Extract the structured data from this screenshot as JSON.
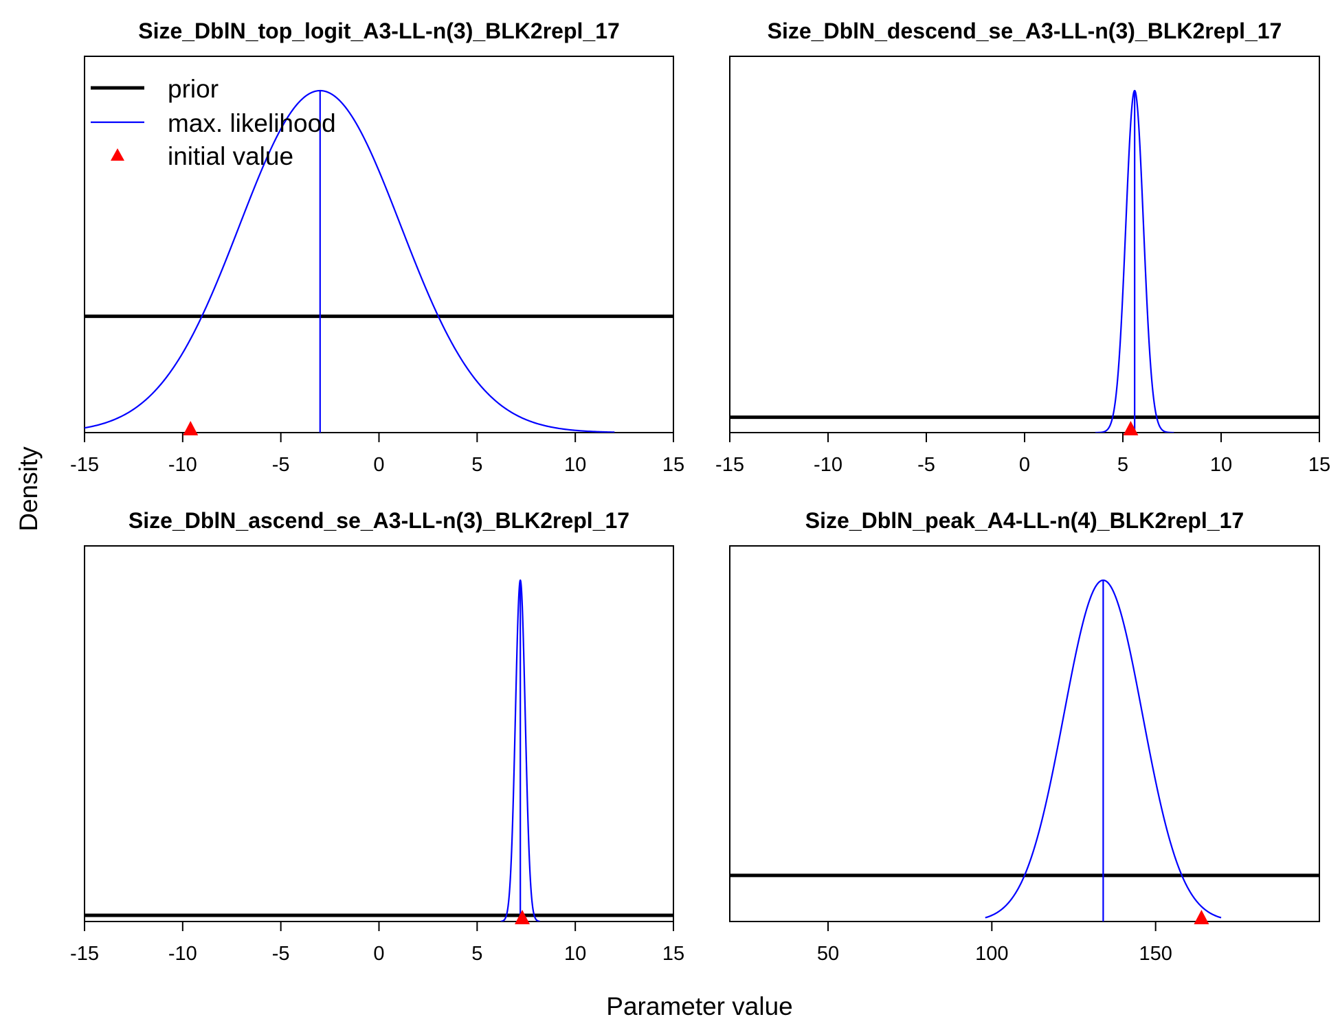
{
  "figure": {
    "xlabel": "Parameter value",
    "ylabel": "Density"
  },
  "legend": {
    "placement": "top-left of first panel",
    "entries": [
      {
        "label": "prior",
        "style": "line",
        "color": "#000000"
      },
      {
        "label": "max. likelihood",
        "style": "line",
        "color": "#0000ff"
      },
      {
        "label": "initial value",
        "style": "triangle",
        "color": "#ff0000"
      }
    ]
  },
  "colors": {
    "prior": "#000000",
    "max_likelihood": "#0000ff",
    "initial_value": "#ff0000"
  },
  "chart_data": [
    {
      "type": "line",
      "title": "Size_DblN_top_logit_A3-LL-n(3)_BLK2repl_17",
      "xlim": [
        -15,
        15
      ],
      "xticks": [
        "-15",
        "-10",
        "-5",
        "0",
        "5",
        "10",
        "15"
      ],
      "series": [
        {
          "name": "prior",
          "kind": "uniform",
          "relative_height": 0.34
        },
        {
          "name": "max. likelihood",
          "kind": "normal",
          "mean": -3.0,
          "sd": 4.1,
          "range": [
            -15,
            12
          ]
        }
      ],
      "mle": -3.0,
      "initial_value": -9.6
    },
    {
      "type": "line",
      "title": "Size_DblN_descend_se_A3-LL-n(3)_BLK2repl_17",
      "xlim": [
        -15,
        15
      ],
      "xticks": [
        "-15",
        "-10",
        "-5",
        "0",
        "5",
        "10",
        "15"
      ],
      "series": [
        {
          "name": "prior",
          "kind": "uniform",
          "relative_height": 0.045
        },
        {
          "name": "max. likelihood",
          "kind": "normal",
          "mean": 5.6,
          "sd": 0.45,
          "range": [
            3.6,
            7.6
          ]
        }
      ],
      "mle": 5.6,
      "initial_value": 5.4
    },
    {
      "type": "line",
      "title": "Size_DblN_ascend_se_A3-LL-n(3)_BLK2repl_17",
      "xlim": [
        -15,
        15
      ],
      "xticks": [
        "-15",
        "-10",
        "-5",
        "0",
        "5",
        "10",
        "15"
      ],
      "series": [
        {
          "name": "prior",
          "kind": "uniform",
          "relative_height": 0.018
        },
        {
          "name": "max. likelihood",
          "kind": "normal",
          "mean": 7.2,
          "sd": 0.25,
          "range": [
            6.2,
            8.2
          ]
        }
      ],
      "mle": 7.2,
      "initial_value": 7.3
    },
    {
      "type": "line",
      "title": "Size_DblN_peak_A4-LL-n(4)_BLK2repl_17",
      "xlim": [
        20,
        200
      ],
      "xticks": [
        "50",
        "100",
        "150"
      ],
      "series": [
        {
          "name": "prior",
          "kind": "uniform",
          "relative_height": 0.135
        },
        {
          "name": "max. likelihood",
          "kind": "normal",
          "mean": 134,
          "sd": 12,
          "range": [
            98,
            170
          ]
        }
      ],
      "mle": 134,
      "initial_value": 164
    }
  ]
}
